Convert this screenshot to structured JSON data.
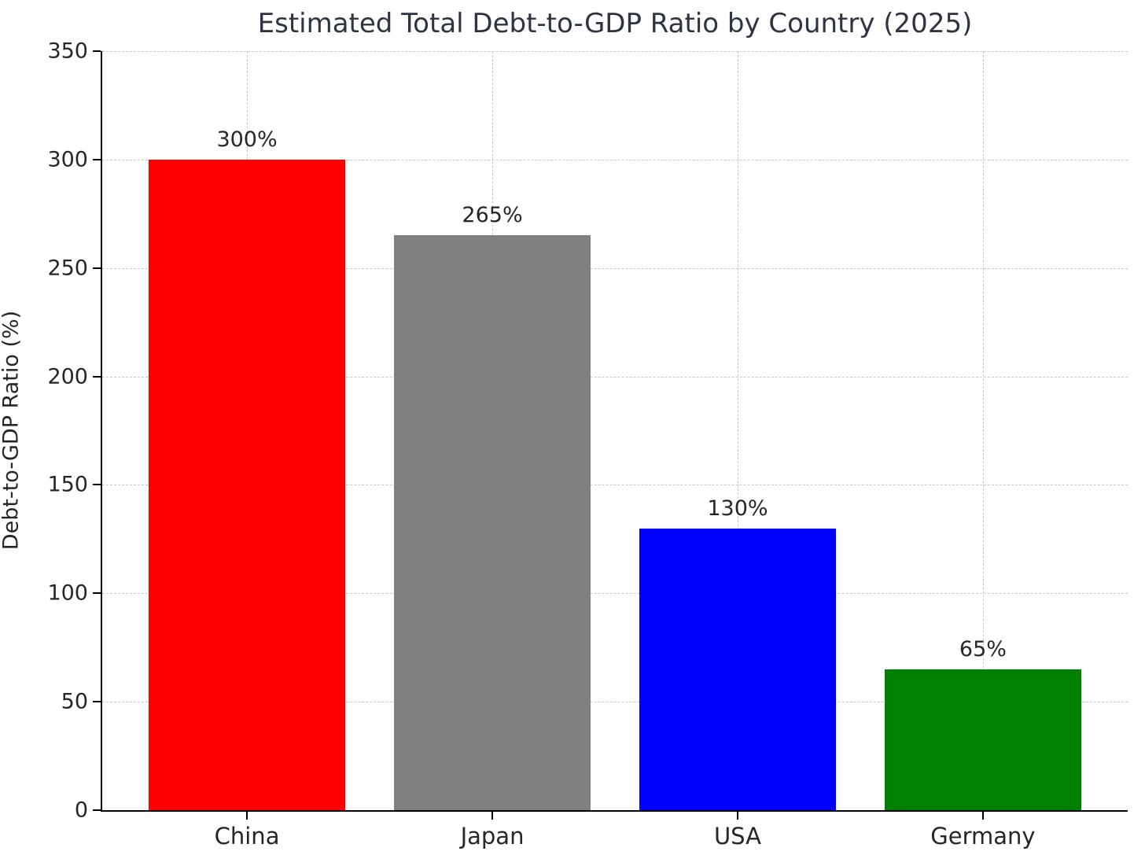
{
  "chart": {
    "title": "Estimated Total Debt-to-GDP Ratio by Country (2025)",
    "ylabel": "Debt-to-GDP Ratio (%)"
  },
  "chart_data": {
    "type": "bar",
    "title": "Estimated Total Debt-to-GDP Ratio by Country (2025)",
    "xlabel": "",
    "ylabel": "Debt-to-GDP Ratio (%)",
    "categories": [
      "China",
      "Japan",
      "USA",
      "Germany"
    ],
    "values": [
      300,
      265,
      130,
      65
    ],
    "value_labels": [
      "300%",
      "265%",
      "130%",
      "65%"
    ],
    "bar_colors": [
      "#ff0000",
      "#808080",
      "#0000ff",
      "#008000"
    ],
    "ylim": [
      0,
      350
    ],
    "yticks": [
      0,
      50,
      100,
      150,
      200,
      250,
      300,
      350
    ],
    "grid": "both, dashed, light-gray, behind bars",
    "legend": "none",
    "bar_width_fraction": 0.8,
    "background": "#ffffff"
  }
}
